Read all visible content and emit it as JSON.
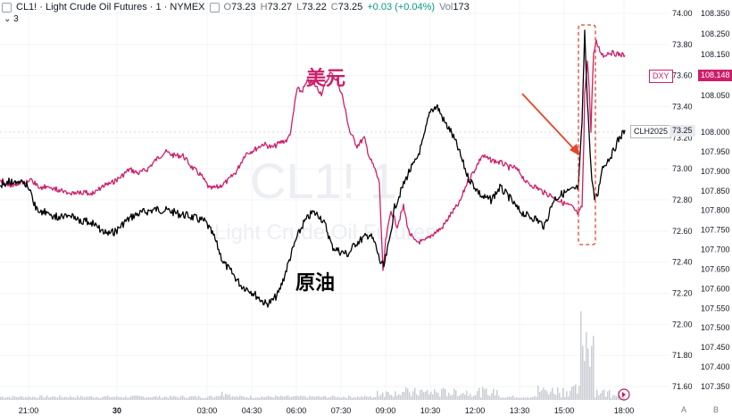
{
  "header": {
    "symbol": "CL1! · Light Crude Oil Futures · 1 · NYMEX",
    "o_label": "O",
    "o": "73.23",
    "h_label": "H",
    "h": "73.27",
    "l_label": "L",
    "l": "73.22",
    "c_label": "C",
    "c": "73.25",
    "change": "+0.03 (+0.04%)",
    "vol_label": "Vol",
    "vol": "173",
    "indicator_count": "3"
  },
  "watermark": "CL1! 1",
  "watermark_sub": "Light Crude Oil Futures",
  "annotations": {
    "usd": "美元",
    "oil": "原油"
  },
  "badges": {
    "dxy_label": "DXY",
    "dxy_value": "108.148",
    "cl_label": "CLH2025",
    "cl_value": "73.25"
  },
  "bottom_right": {
    "a": "A",
    "b": "B"
  },
  "colors": {
    "usd": "#cc1f6a",
    "oil": "#000000",
    "arrow": "#e8442a",
    "volume": "#c9ccd3"
  },
  "chart_data": {
    "type": "line",
    "x_ticks": [
      "21:00",
      "30",
      "03:00",
      "04:30",
      "06:00",
      "07:30",
      "09:00",
      "10:30",
      "12:00",
      "13:30",
      "15:00",
      "18:00"
    ],
    "y_left_ticks": [
      "74.00",
      "73.80",
      "73.60",
      "73.40",
      "73.20",
      "73.00",
      "72.80",
      "72.60",
      "72.40",
      "72.20",
      "72.00",
      "71.80",
      "71.60"
    ],
    "y_right_ticks": [
      "108.350",
      "108.250",
      "108.150",
      "108.100",
      "108.050",
      "108.000",
      "107.950",
      "107.900",
      "107.850",
      "107.800",
      "107.750",
      "107.700",
      "107.650",
      "107.600",
      "107.550",
      "107.500",
      "107.450",
      "107.400",
      "107.350"
    ],
    "series": [
      {
        "name": "美元",
        "points": [
          [
            0,
            107.88
          ],
          [
            10,
            107.865
          ],
          [
            20,
            107.87
          ],
          [
            35,
            107.875
          ],
          [
            45,
            107.86
          ],
          [
            60,
            107.858
          ],
          [
            75,
            107.845
          ],
          [
            90,
            107.848
          ],
          [
            105,
            107.842
          ],
          [
            115,
            107.862
          ],
          [
            125,
            107.87
          ],
          [
            135,
            107.885
          ],
          [
            145,
            107.905
          ],
          [
            155,
            107.895
          ],
          [
            165,
            107.905
          ],
          [
            175,
            107.93
          ],
          [
            185,
            107.95
          ],
          [
            195,
            107.94
          ],
          [
            205,
            107.94
          ],
          [
            215,
            107.91
          ],
          [
            225,
            107.89
          ],
          [
            235,
            107.855
          ],
          [
            245,
            107.86
          ],
          [
            255,
            107.875
          ],
          [
            265,
            107.9
          ],
          [
            275,
            107.945
          ],
          [
            285,
            107.955
          ],
          [
            295,
            107.97
          ],
          [
            305,
            107.96
          ],
          [
            315,
            107.975
          ],
          [
            322,
            107.98
          ],
          [
            327,
            108.01
          ],
          [
            333,
            108.065
          ],
          [
            338,
            108.06
          ],
          [
            345,
            108.085
          ],
          [
            352,
            108.078
          ],
          [
            360,
            108.055
          ],
          [
            370,
            108.105
          ],
          [
            378,
            108.085
          ],
          [
            385,
            108.04
          ],
          [
            392,
            108.0
          ],
          [
            400,
            107.965
          ],
          [
            408,
            107.985
          ],
          [
            414,
            107.935
          ],
          [
            420,
            107.905
          ],
          [
            425,
            107.87
          ],
          [
            429,
            107.64
          ],
          [
            432,
            107.72
          ],
          [
            438,
            107.8
          ],
          [
            445,
            107.76
          ],
          [
            452,
            107.81
          ],
          [
            458,
            107.745
          ],
          [
            465,
            107.72
          ],
          [
            475,
            107.72
          ],
          [
            485,
            107.74
          ],
          [
            495,
            107.755
          ],
          [
            505,
            107.79
          ],
          [
            515,
            107.82
          ],
          [
            523,
            107.87
          ],
          [
            532,
            107.905
          ],
          [
            540,
            107.94
          ],
          [
            548,
            107.93
          ],
          [
            556,
            107.925
          ],
          [
            563,
            107.92
          ],
          [
            570,
            107.91
          ],
          [
            576,
            107.91
          ],
          [
            583,
            107.895
          ],
          [
            590,
            107.87
          ],
          [
            600,
            107.86
          ],
          [
            610,
            107.845
          ],
          [
            620,
            107.835
          ],
          [
            630,
            107.82
          ],
          [
            640,
            107.81
          ],
          [
            648,
            107.79
          ],
          [
            652,
            107.81
          ],
          [
            655,
            108.05
          ],
          [
            658,
            108.14
          ],
          [
            662,
            107.995
          ],
          [
            665,
            108.15
          ],
          [
            668,
            108.21
          ],
          [
            672,
            108.17
          ],
          [
            676,
            108.145
          ],
          [
            682,
            108.16
          ],
          [
            688,
            108.155
          ],
          [
            695,
            108.15
          ],
          [
            700,
            108.148
          ]
        ]
      },
      {
        "name": "原油",
        "points": [
          [
            0,
            72.9
          ],
          [
            10,
            72.92
          ],
          [
            20,
            72.93
          ],
          [
            30,
            72.9
          ],
          [
            40,
            72.75
          ],
          [
            50,
            72.72
          ],
          [
            60,
            72.7
          ],
          [
            70,
            72.69
          ],
          [
            80,
            72.71
          ],
          [
            90,
            72.67
          ],
          [
            100,
            72.66
          ],
          [
            110,
            72.62
          ],
          [
            120,
            72.58
          ],
          [
            130,
            72.6
          ],
          [
            140,
            72.66
          ],
          [
            150,
            72.7
          ],
          [
            160,
            72.72
          ],
          [
            175,
            72.74
          ],
          [
            190,
            72.73
          ],
          [
            200,
            72.71
          ],
          [
            210,
            72.7
          ],
          [
            220,
            72.68
          ],
          [
            230,
            72.66
          ],
          [
            240,
            72.56
          ],
          [
            250,
            72.4
          ],
          [
            260,
            72.33
          ],
          [
            270,
            72.25
          ],
          [
            280,
            72.22
          ],
          [
            290,
            72.17
          ],
          [
            298,
            72.13
          ],
          [
            305,
            72.15
          ],
          [
            312,
            72.2
          ],
          [
            318,
            72.3
          ],
          [
            325,
            72.43
          ],
          [
            332,
            72.55
          ],
          [
            340,
            72.65
          ],
          [
            350,
            72.72
          ],
          [
            358,
            72.7
          ],
          [
            365,
            72.63
          ],
          [
            372,
            72.5
          ],
          [
            380,
            72.47
          ],
          [
            390,
            72.45
          ],
          [
            398,
            72.52
          ],
          [
            406,
            72.55
          ],
          [
            414,
            72.58
          ],
          [
            420,
            72.52
          ],
          [
            426,
            72.4
          ],
          [
            430,
            72.37
          ],
          [
            436,
            72.53
          ],
          [
            442,
            72.75
          ],
          [
            450,
            72.87
          ],
          [
            458,
            72.98
          ],
          [
            466,
            73.05
          ],
          [
            474,
            73.18
          ],
          [
            482,
            73.38
          ],
          [
            490,
            73.4
          ],
          [
            498,
            73.3
          ],
          [
            505,
            73.24
          ],
          [
            512,
            73.15
          ],
          [
            518,
            73.05
          ],
          [
            524,
            72.95
          ],
          [
            530,
            72.9
          ],
          [
            540,
            72.82
          ],
          [
            550,
            72.8
          ],
          [
            560,
            72.88
          ],
          [
            570,
            72.82
          ],
          [
            580,
            72.74
          ],
          [
            590,
            72.7
          ],
          [
            600,
            72.68
          ],
          [
            610,
            72.63
          ],
          [
            620,
            72.8
          ],
          [
            630,
            72.84
          ],
          [
            640,
            72.86
          ],
          [
            648,
            72.88
          ],
          [
            652,
            73.3
          ],
          [
            655,
            73.87
          ],
          [
            658,
            73.45
          ],
          [
            662,
            73.0
          ],
          [
            666,
            72.8
          ],
          [
            670,
            72.84
          ],
          [
            674,
            73.0
          ],
          [
            680,
            73.05
          ],
          [
            686,
            73.1
          ],
          [
            692,
            73.18
          ],
          [
            700,
            73.25
          ]
        ]
      }
    ]
  }
}
